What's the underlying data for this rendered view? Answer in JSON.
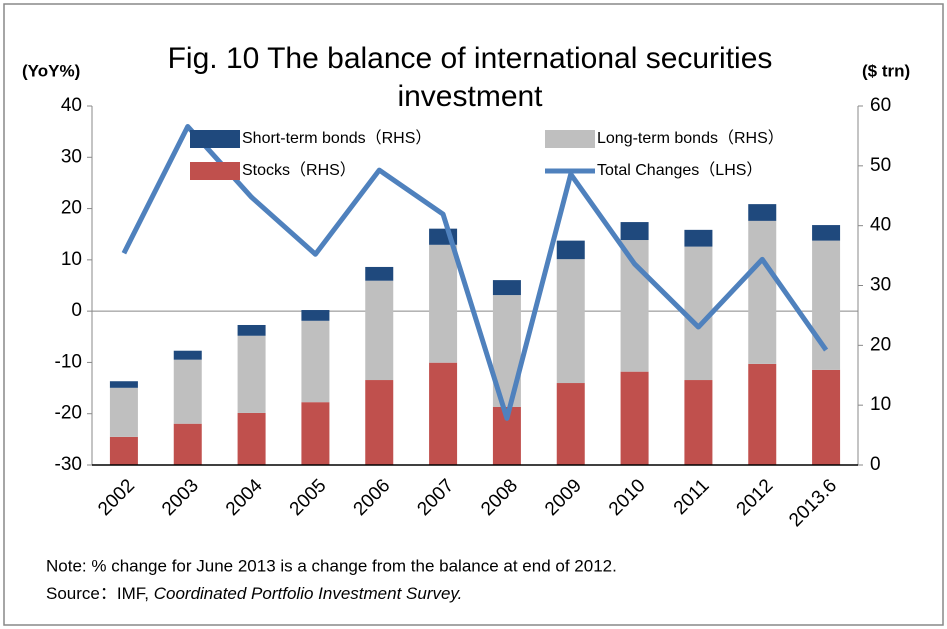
{
  "chart_data": {
    "type": "bar-line",
    "title": "Fig. 10  The balance of international securities investment",
    "y_label": "(YoY%)",
    "y2_label": "($ trn)",
    "categories": [
      "2002",
      "2003",
      "2004",
      "2005",
      "2006",
      "2007",
      "2008",
      "2009",
      "2010",
      "2011",
      "2012",
      "2013.6"
    ],
    "series": [
      {
        "name": "Stocks（RHS）",
        "type": "bar",
        "axis": "y2",
        "color": "#c0504d",
        "values": [
          4.7,
          6.9,
          8.7,
          10.5,
          14.2,
          17.1,
          9.7,
          13.7,
          15.6,
          14.2,
          16.9,
          15.9
        ]
      },
      {
        "name": "Long-term bonds（RHS）",
        "type": "bar",
        "axis": "y2",
        "color": "#bfbfbf",
        "values": [
          8.2,
          10.7,
          12.9,
          13.6,
          16.6,
          19.7,
          18.7,
          20.7,
          22.0,
          22.3,
          23.9,
          21.6
        ]
      },
      {
        "name": "Short-term bonds（RHS）",
        "type": "bar",
        "axis": "y2",
        "color": "#1f497d",
        "values": [
          1.1,
          1.5,
          1.8,
          1.8,
          2.3,
          2.7,
          2.5,
          3.1,
          3.0,
          2.8,
          2.8,
          2.6
        ]
      },
      {
        "name": "Total Changes（LHS）",
        "type": "line",
        "color": "#4f81bd",
        "values": [
          11.3,
          36,
          22.2,
          11.1,
          27.5,
          18.9,
          -20.9,
          26.7,
          9.2,
          -3.1,
          10.1,
          -7.6
        ]
      }
    ],
    "ylim": [
      -30,
      40
    ],
    "yticks": [
      -30,
      -20,
      -10,
      0,
      10,
      20,
      30,
      40
    ],
    "y2lim": [
      0,
      60
    ],
    "y2ticks": [
      0,
      10,
      20,
      30,
      40,
      50,
      60
    ],
    "note": "Note: % change for June 2013 is a change from the balance at end of 2012.",
    "source": "Source：IMF,",
    "source_title": "Coordinated Portfolio Investment Survey."
  }
}
